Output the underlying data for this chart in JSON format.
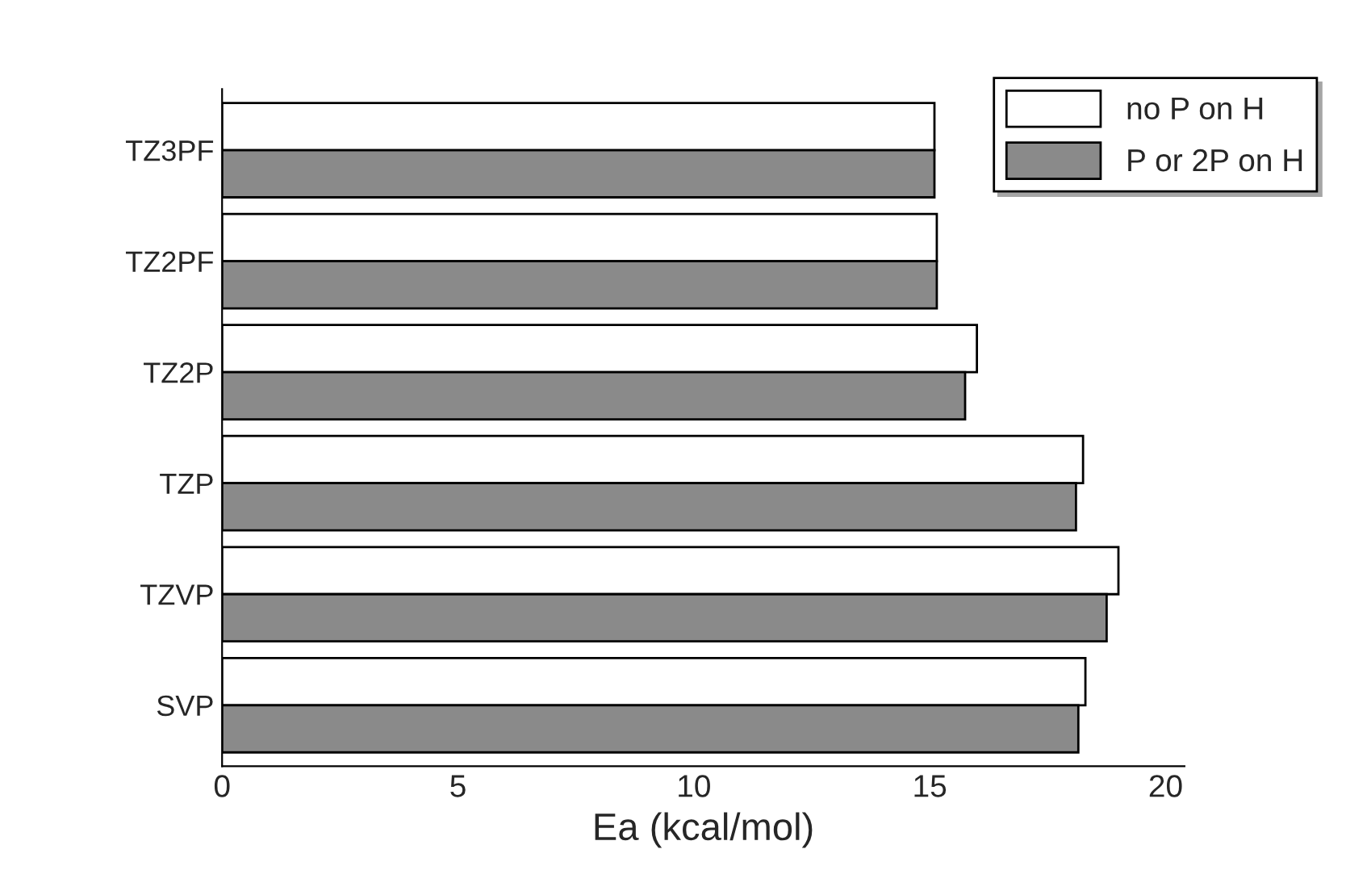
{
  "chart_data": {
    "type": "bar",
    "orientation": "horizontal",
    "xlabel": "Ea (kcal/mol)",
    "categories": [
      "TZ3PF",
      "TZ2PF",
      "TZ2P",
      "TZP",
      "TZVP",
      "SVP"
    ],
    "series": [
      {
        "name": "no P on H",
        "color": "#ffffff",
        "values": [
          15.1,
          15.15,
          16.0,
          18.25,
          19.0,
          18.3
        ]
      },
      {
        "name": "P or 2P on H",
        "color": "#8a8a8a",
        "values": [
          15.1,
          15.15,
          15.75,
          18.1,
          18.75,
          18.15
        ]
      }
    ],
    "xlim": [
      0,
      20.4
    ],
    "xticks": [
      0,
      5,
      10,
      15,
      20
    ],
    "grid": false,
    "legend": "top right"
  }
}
